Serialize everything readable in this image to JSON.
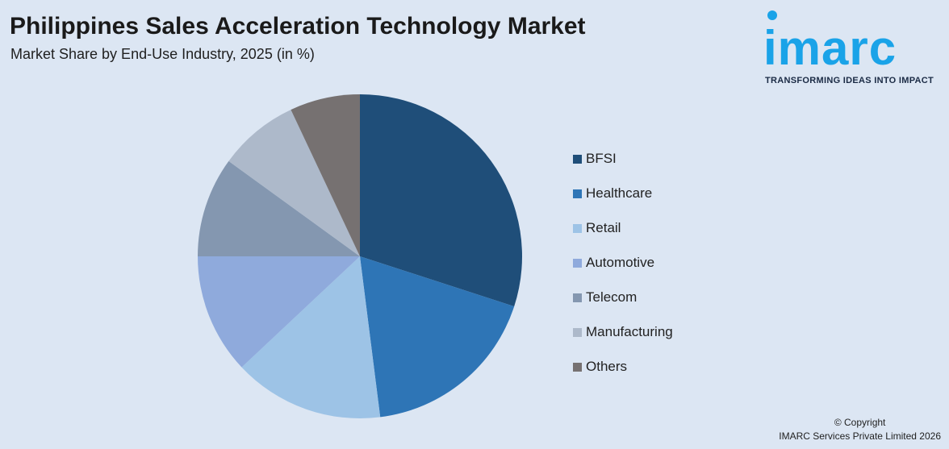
{
  "header": {
    "title": "Philippines Sales Acceleration Technology Market",
    "subtitle": "Market Share by End-Use Industry, 2025 (in %)"
  },
  "logo": {
    "word": "imarc",
    "tagline": "TRANSFORMING IDEAS INTO IMPACT",
    "color": "#1aa3e8"
  },
  "chart_data": {
    "type": "pie",
    "title": "Philippines Sales Acceleration Technology Market",
    "subtitle": "Market Share by End-Use Industry, 2025 (in %)",
    "legend_position": "right",
    "categories": [
      "BFSI",
      "Healthcare",
      "Retail",
      "Automotive",
      "Telecom",
      "Manufacturing",
      "Others"
    ],
    "values": [
      30,
      18,
      15,
      12,
      10,
      8,
      7
    ],
    "colors": [
      "#1f4e79",
      "#2e75b6",
      "#9dc3e6",
      "#8faadc",
      "#8497b0",
      "#adb9ca",
      "#767171"
    ]
  },
  "footer": {
    "copyright_line1": "© Copyright",
    "copyright_line2": "IMARC Services Private Limited 2026"
  }
}
